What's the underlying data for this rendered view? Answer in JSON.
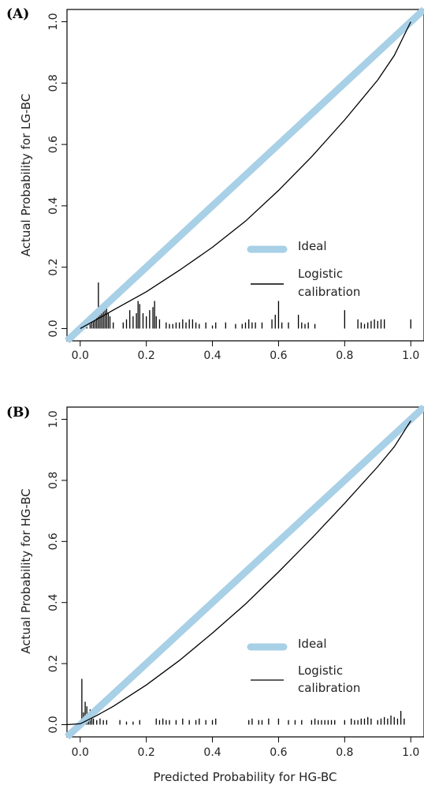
{
  "chart_data": [
    {
      "type": "line",
      "panel_label": "(A)",
      "xlabel": "",
      "ylabel": "Actual Probability for LG-BC",
      "xlim": [
        -0.04,
        1.04
      ],
      "ylim": [
        -0.04,
        1.04
      ],
      "x_ticks": [
        "0.0",
        "0.2",
        "0.4",
        "0.6",
        "0.8",
        "1.0"
      ],
      "y_ticks": [
        "0.0",
        "0.2",
        "0.4",
        "0.6",
        "0.8",
        "1.0"
      ],
      "colors": {
        "ideal": "#a8d0e6",
        "logistic": "#000000"
      },
      "legend": {
        "position": "bottom-right",
        "entries": [
          {
            "label": "Ideal"
          },
          {
            "label": "Logistic",
            "label2": "calibration"
          }
        ]
      },
      "series": [
        {
          "name": "Ideal",
          "x": [
            -0.04,
            1.04
          ],
          "y": [
            -0.04,
            1.04
          ]
        },
        {
          "name": "Logistic calibration",
          "x": [
            0.0,
            0.05,
            0.1,
            0.2,
            0.3,
            0.4,
            0.5,
            0.6,
            0.7,
            0.8,
            0.9,
            0.95,
            1.0
          ],
          "y": [
            0.0,
            0.03,
            0.06,
            0.12,
            0.19,
            0.265,
            0.35,
            0.45,
            0.56,
            0.68,
            0.81,
            0.89,
            1.0
          ]
        }
      ],
      "spike_histogram": {
        "x": [
          0.02,
          0.03,
          0.035,
          0.04,
          0.045,
          0.05,
          0.055,
          0.06,
          0.065,
          0.07,
          0.075,
          0.08,
          0.085,
          0.09,
          0.1,
          0.13,
          0.14,
          0.15,
          0.16,
          0.17,
          0.175,
          0.18,
          0.19,
          0.2,
          0.21,
          0.22,
          0.225,
          0.23,
          0.24,
          0.26,
          0.27,
          0.28,
          0.29,
          0.3,
          0.31,
          0.32,
          0.33,
          0.34,
          0.35,
          0.36,
          0.38,
          0.4,
          0.41,
          0.44,
          0.47,
          0.49,
          0.5,
          0.51,
          0.52,
          0.53,
          0.55,
          0.58,
          0.59,
          0.6,
          0.61,
          0.63,
          0.66,
          0.67,
          0.68,
          0.69,
          0.71,
          0.8,
          0.84,
          0.85,
          0.86,
          0.87,
          0.88,
          0.89,
          0.9,
          0.91,
          0.92,
          1.0
        ],
        "h": [
          0.01,
          0.03,
          0.035,
          0.04,
          0.05,
          0.06,
          0.15,
          0.07,
          0.05,
          0.06,
          0.07,
          0.08,
          0.05,
          0.04,
          0.02,
          0.02,
          0.03,
          0.06,
          0.04,
          0.05,
          0.09,
          0.08,
          0.05,
          0.04,
          0.06,
          0.07,
          0.09,
          0.04,
          0.03,
          0.02,
          0.015,
          0.015,
          0.02,
          0.02,
          0.03,
          0.02,
          0.03,
          0.03,
          0.02,
          0.015,
          0.02,
          0.01,
          0.02,
          0.02,
          0.015,
          0.015,
          0.02,
          0.03,
          0.02,
          0.02,
          0.02,
          0.03,
          0.045,
          0.09,
          0.02,
          0.02,
          0.045,
          0.02,
          0.015,
          0.02,
          0.015,
          0.06,
          0.03,
          0.02,
          0.015,
          0.02,
          0.025,
          0.03,
          0.025,
          0.03,
          0.03,
          0.03
        ]
      }
    },
    {
      "type": "line",
      "panel_label": "(B)",
      "xlabel": "Predicted Probability for HG-BC",
      "ylabel": "Actual Probability for HG-BC",
      "xlim": [
        -0.04,
        1.04
      ],
      "ylim": [
        -0.04,
        1.04
      ],
      "x_ticks": [
        "0.0",
        "0.2",
        "0.4",
        "0.6",
        "0.8",
        "1.0"
      ],
      "y_ticks": [
        "0.0",
        "0.2",
        "0.4",
        "0.6",
        "0.8",
        "1.0"
      ],
      "colors": {
        "ideal": "#a8d0e6",
        "logistic": "#000000"
      },
      "legend": {
        "position": "bottom-right",
        "entries": [
          {
            "label": "Ideal"
          },
          {
            "label": "Logistic",
            "label2": "calibration"
          }
        ]
      },
      "series": [
        {
          "name": "Ideal",
          "x": [
            -0.04,
            1.04
          ],
          "y": [
            -0.04,
            1.04
          ]
        },
        {
          "name": "Logistic calibration",
          "x": [
            -0.04,
            0.0,
            0.05,
            0.1,
            0.2,
            0.3,
            0.4,
            0.5,
            0.6,
            0.7,
            0.8,
            0.9,
            0.95,
            1.0
          ],
          "y": [
            0.0,
            0.003,
            0.03,
            0.06,
            0.13,
            0.21,
            0.3,
            0.395,
            0.5,
            0.61,
            0.725,
            0.845,
            0.91,
            0.995
          ]
        }
      ],
      "spike_histogram": {
        "x": [
          0.005,
          0.01,
          0.015,
          0.02,
          0.025,
          0.03,
          0.035,
          0.04,
          0.05,
          0.06,
          0.07,
          0.08,
          0.12,
          0.14,
          0.16,
          0.18,
          0.23,
          0.24,
          0.25,
          0.26,
          0.27,
          0.29,
          0.31,
          0.33,
          0.35,
          0.36,
          0.38,
          0.4,
          0.41,
          0.51,
          0.52,
          0.54,
          0.55,
          0.57,
          0.6,
          0.63,
          0.65,
          0.67,
          0.7,
          0.71,
          0.72,
          0.73,
          0.74,
          0.75,
          0.76,
          0.77,
          0.8,
          0.82,
          0.83,
          0.84,
          0.85,
          0.86,
          0.87,
          0.88,
          0.9,
          0.91,
          0.92,
          0.93,
          0.94,
          0.95,
          0.96,
          0.97,
          0.98
        ],
        "h": [
          0.15,
          0.04,
          0.075,
          0.06,
          0.03,
          0.05,
          0.04,
          0.02,
          0.015,
          0.02,
          0.015,
          0.015,
          0.015,
          0.01,
          0.01,
          0.015,
          0.02,
          0.015,
          0.02,
          0.015,
          0.015,
          0.015,
          0.02,
          0.015,
          0.015,
          0.02,
          0.015,
          0.015,
          0.02,
          0.015,
          0.02,
          0.015,
          0.015,
          0.02,
          0.02,
          0.015,
          0.015,
          0.015,
          0.015,
          0.02,
          0.015,
          0.015,
          0.015,
          0.015,
          0.015,
          0.015,
          0.015,
          0.02,
          0.015,
          0.015,
          0.02,
          0.02,
          0.025,
          0.02,
          0.015,
          0.02,
          0.025,
          0.02,
          0.03,
          0.025,
          0.02,
          0.045,
          0.02
        ]
      }
    }
  ]
}
